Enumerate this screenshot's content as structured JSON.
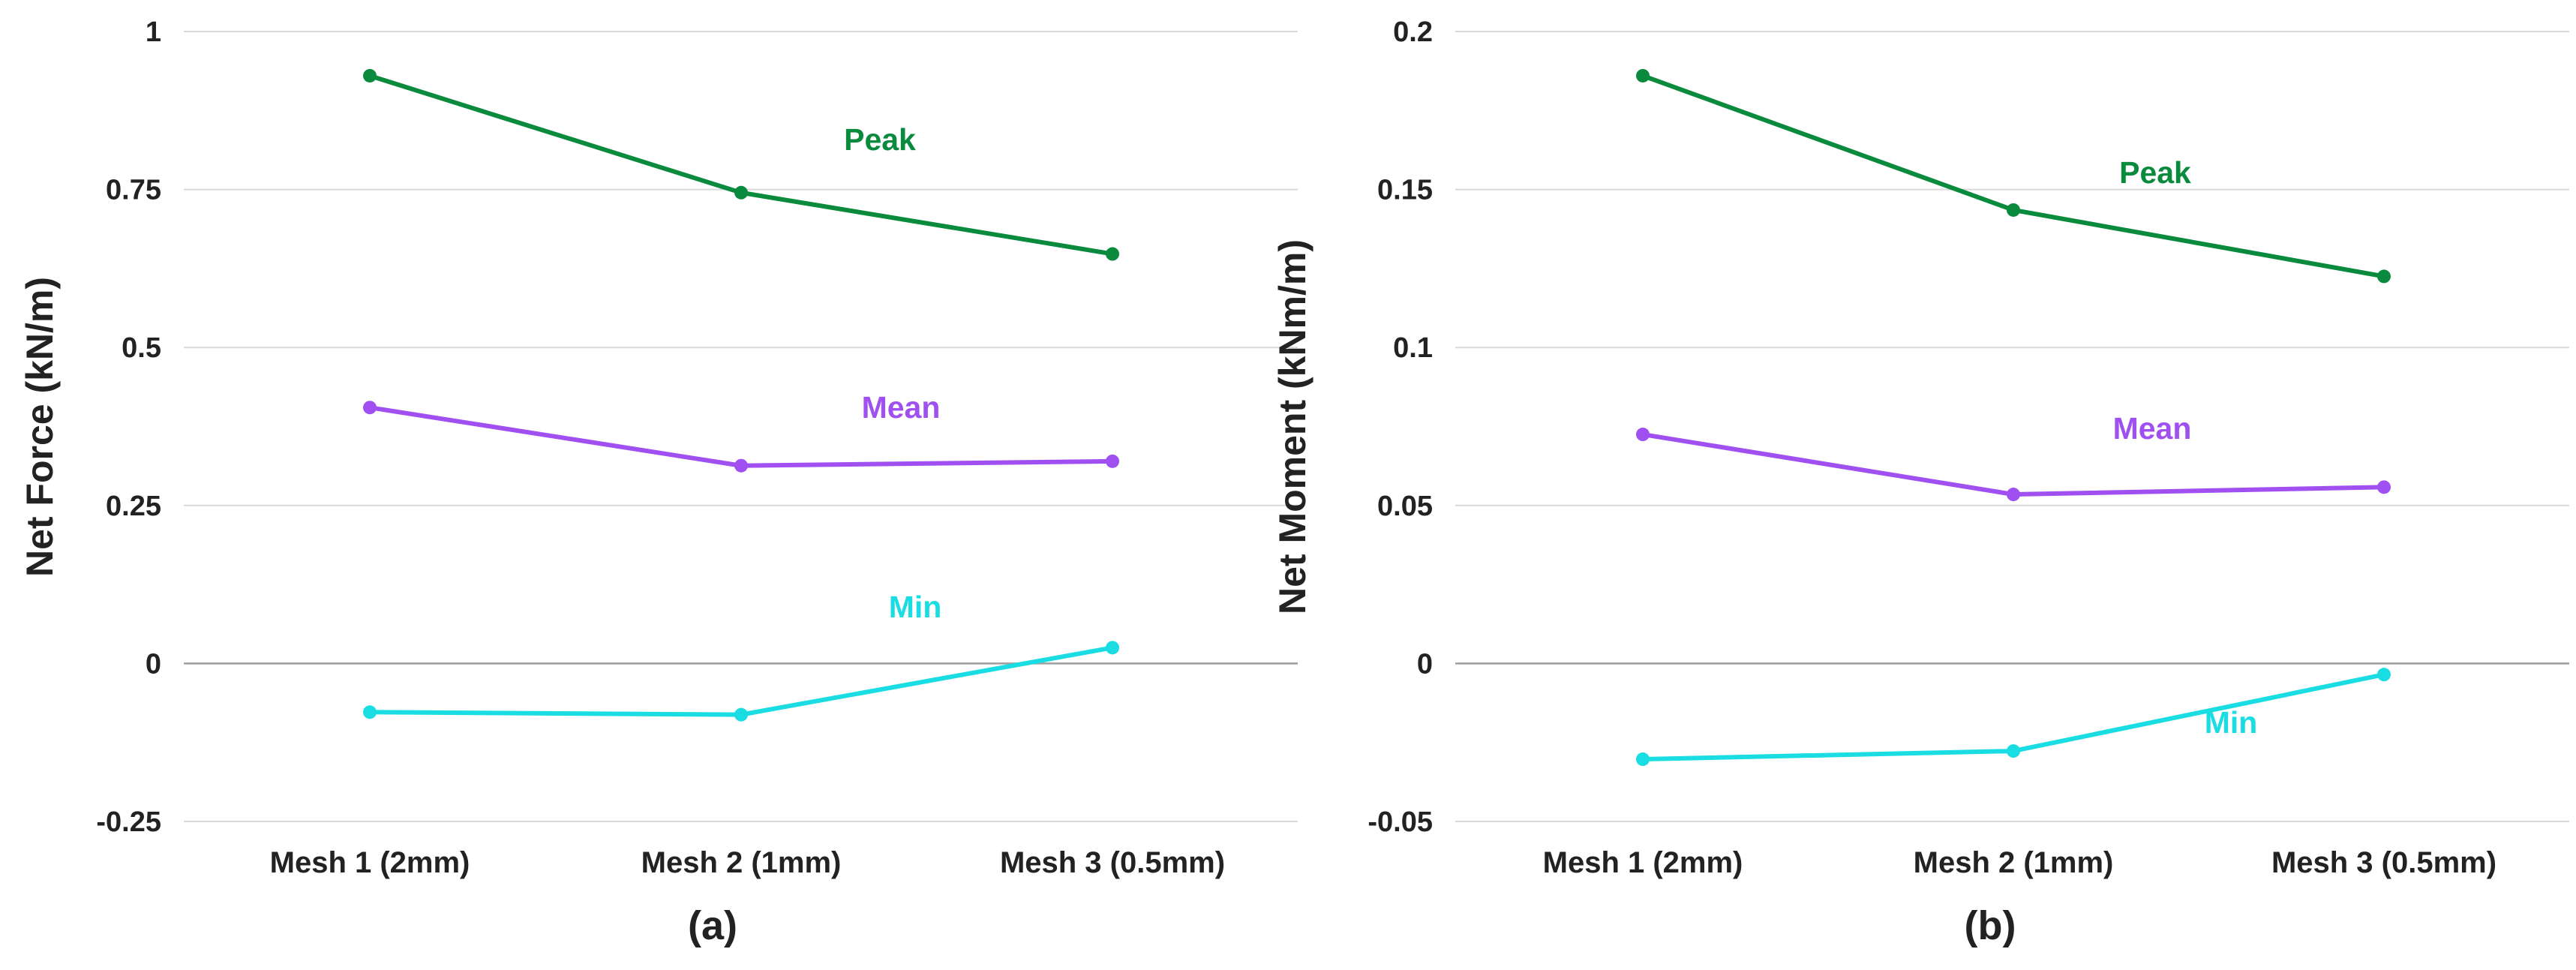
{
  "chart_data": [
    {
      "type": "line",
      "panel_label": "(a)",
      "ylabel": "Net Force (kN/m)",
      "categories": [
        "Mesh 1 (2mm)",
        "Mesh 2 (1mm)",
        "Mesh 3 (0.5mm)"
      ],
      "ylim": [
        -0.25,
        1
      ],
      "yticks": [
        1,
        0.75,
        0.5,
        0.25,
        0,
        -0.25
      ],
      "ytick_labels": [
        "1",
        "0.75",
        "0.5",
        "0.25",
        "0",
        "-0.25"
      ],
      "grid": true,
      "series": [
        {
          "name": "Peak",
          "color": "#0a8a3c",
          "values": [
            0.93,
            0.745,
            0.648
          ]
        },
        {
          "name": "Mean",
          "color": "#a050f0",
          "values": [
            0.405,
            0.313,
            0.32
          ]
        },
        {
          "name": "Min",
          "color": "#19dde2",
          "values": [
            -0.077,
            -0.081,
            0.025
          ]
        }
      ]
    },
    {
      "type": "line",
      "panel_label": "(b)",
      "ylabel": "Net Moment (kNm/m)",
      "categories": [
        "Mesh 1 (2mm)",
        "Mesh 2 (1mm)",
        "Mesh 3 (0.5mm)"
      ],
      "ylim": [
        -0.05,
        0.2
      ],
      "yticks": [
        0.2,
        0.15,
        0.1,
        0.05,
        0,
        -0.05
      ],
      "ytick_labels": [
        "0.2",
        "0.15",
        "0.1",
        "0.05",
        "0",
        "-0.05"
      ],
      "grid": true,
      "series": [
        {
          "name": "Peak",
          "color": "#0a8a3c",
          "values": [
            0.186,
            0.1435,
            0.1225
          ]
        },
        {
          "name": "Mean",
          "color": "#a050f0",
          "values": [
            0.0725,
            0.0535,
            0.0558
          ]
        },
        {
          "name": "Min",
          "color": "#19dde2",
          "values": [
            -0.0303,
            -0.0277,
            -0.0035
          ]
        }
      ]
    }
  ]
}
